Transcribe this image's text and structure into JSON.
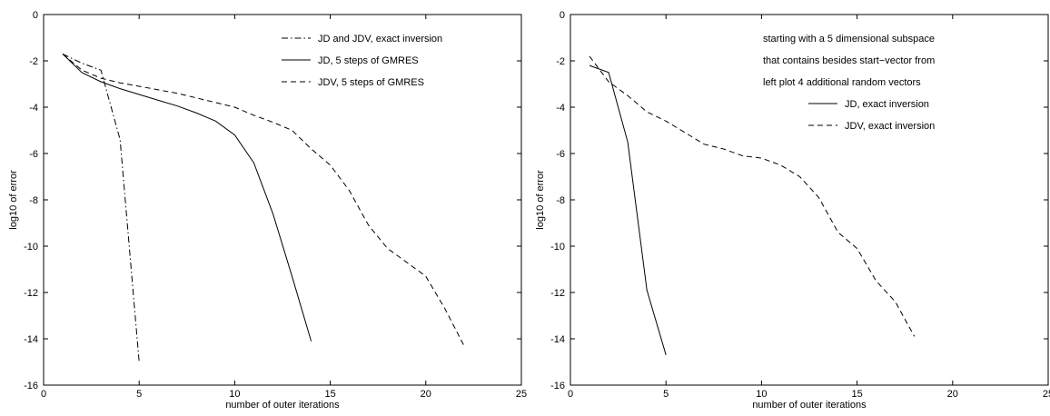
{
  "chart_data": [
    {
      "type": "line",
      "title": "",
      "xlabel": "number of outer iterations",
      "ylabel": "log10 of error",
      "xlim": [
        0,
        25
      ],
      "ylim": [
        -16,
        0
      ],
      "xticks": [
        "0",
        "5",
        "10",
        "15",
        "20",
        "25"
      ],
      "yticks": [
        "0",
        "-2",
        "-4",
        "-6",
        "-8",
        "-10",
        "-12",
        "-14",
        "-16"
      ],
      "grid": false,
      "legend_position": "top-right",
      "annotations": [],
      "series": [
        {
          "name": "JD and JDV, exact inversion",
          "style": "dashdot",
          "color": "#000000",
          "x": [
            1,
            2,
            3,
            4,
            5
          ],
          "y": [
            -1.7,
            -2.1,
            -2.4,
            -5.4,
            -15.0
          ]
        },
        {
          "name": "JD, 5 steps of GMRES",
          "style": "solid",
          "color": "#000000",
          "x": [
            1,
            2,
            3,
            4,
            5,
            6,
            7,
            8,
            9,
            10,
            11,
            12,
            13,
            14
          ],
          "y": [
            -1.7,
            -2.5,
            -2.9,
            -3.2,
            -3.45,
            -3.7,
            -3.95,
            -4.25,
            -4.6,
            -5.2,
            -6.4,
            -8.6,
            -11.3,
            -14.1
          ]
        },
        {
          "name": "JDV, 5 steps of GMRES",
          "style": "dashed",
          "color": "#000000",
          "x": [
            1,
            2,
            3,
            4,
            5,
            6,
            7,
            8,
            9,
            10,
            11,
            12,
            13,
            14,
            15,
            16,
            17,
            18,
            19,
            20,
            21,
            22
          ],
          "y": [
            -1.7,
            -2.4,
            -2.75,
            -2.95,
            -3.1,
            -3.25,
            -3.4,
            -3.6,
            -3.8,
            -4.0,
            -4.35,
            -4.65,
            -5.0,
            -5.8,
            -6.5,
            -7.6,
            -9.1,
            -10.1,
            -10.7,
            -11.3,
            -12.7,
            -14.3
          ]
        }
      ]
    },
    {
      "type": "line",
      "title": "",
      "xlabel": "number of outer iterations",
      "ylabel": "log10 of error",
      "xlim": [
        0,
        25
      ],
      "ylim": [
        -16,
        0
      ],
      "xticks": [
        "0",
        "5",
        "10",
        "15",
        "20",
        "25"
      ],
      "yticks": [
        "0",
        "-2",
        "-4",
        "-6",
        "-8",
        "-10",
        "-12",
        "-14",
        "-16"
      ],
      "grid": false,
      "legend_position": "top-right",
      "annotations": [
        "starting with a  5 dimensional subspace",
        "that contains besides start−vector from",
        "left plot 4 additional random vectors"
      ],
      "series": [
        {
          "name": "JD, exact inversion",
          "style": "solid",
          "color": "#000000",
          "x": [
            1,
            2,
            3,
            4,
            5
          ],
          "y": [
            -2.2,
            -2.5,
            -5.5,
            -11.9,
            -14.7
          ]
        },
        {
          "name": "JDV, exact inversion",
          "style": "dashed",
          "color": "#000000",
          "x": [
            1,
            2,
            3,
            4,
            5,
            6,
            7,
            8,
            9,
            10,
            11,
            12,
            13,
            14,
            15,
            16,
            17,
            18
          ],
          "y": [
            -1.8,
            -2.9,
            -3.5,
            -4.2,
            -4.6,
            -5.1,
            -5.6,
            -5.8,
            -6.1,
            -6.2,
            -6.5,
            -7.0,
            -7.9,
            -9.4,
            -10.1,
            -11.5,
            -12.4,
            -13.9
          ]
        }
      ]
    }
  ]
}
